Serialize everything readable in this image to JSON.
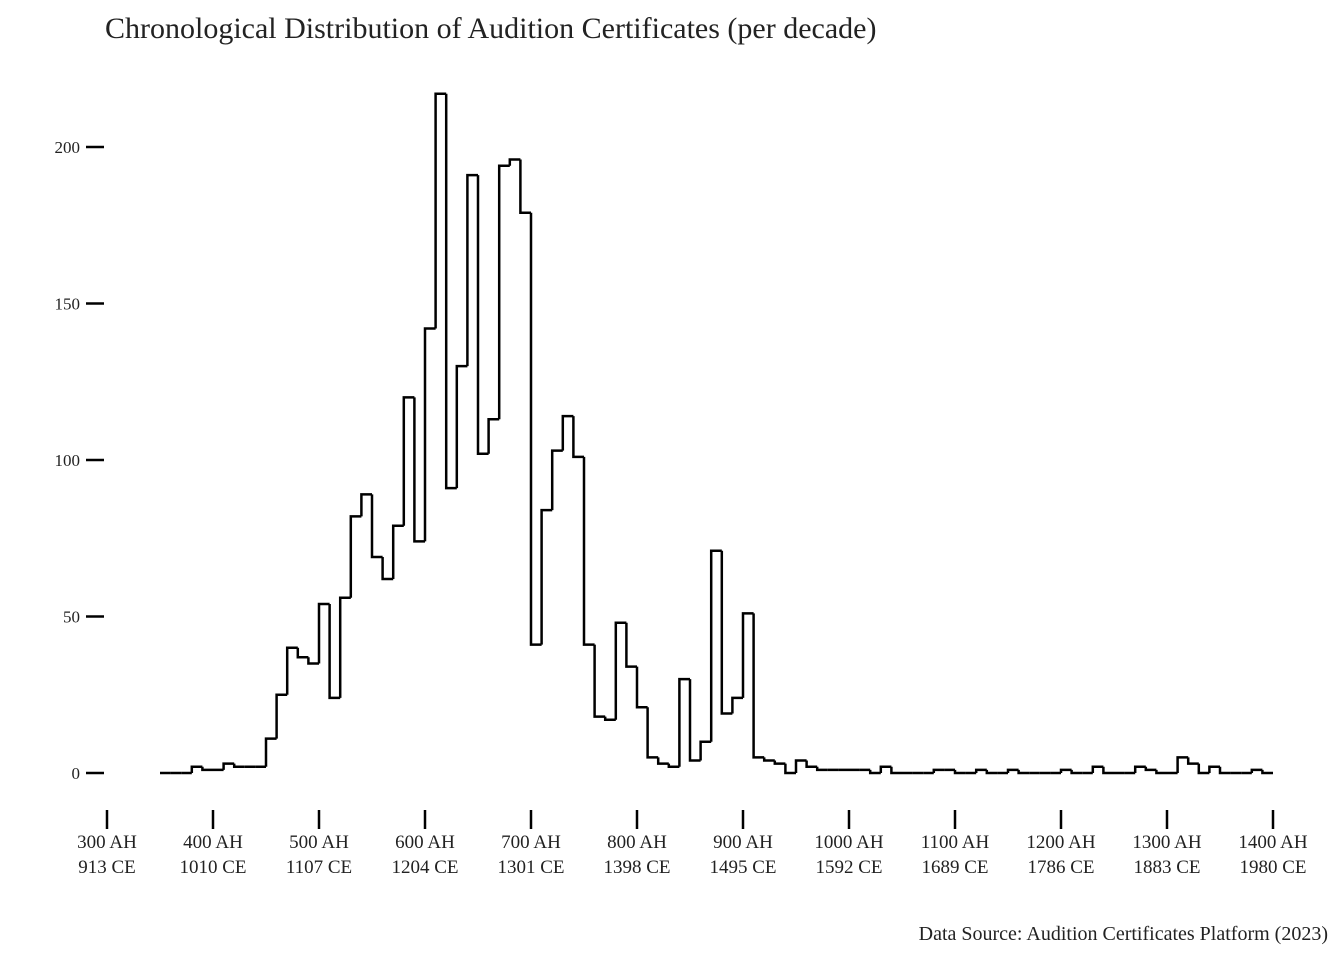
{
  "chart_data": {
    "type": "step-histogram",
    "title": "Chronological Distribution of Audition Certificates (per decade)",
    "source": "Data Source: Audition Certificates Platform (2023)",
    "color": "#000000",
    "bins": [
      350,
      360,
      370,
      380,
      390,
      400,
      410,
      420,
      430,
      440,
      450,
      460,
      470,
      480,
      490,
      500,
      510,
      520,
      530,
      540,
      550,
      560,
      570,
      580,
      590,
      600,
      610,
      620,
      630,
      640,
      650,
      660,
      670,
      680,
      690,
      700,
      710,
      720,
      730,
      740,
      750,
      760,
      770,
      780,
      790,
      800,
      810,
      820,
      830,
      840,
      850,
      860,
      870,
      880,
      890,
      900,
      910,
      920,
      930,
      940,
      950,
      960,
      970,
      980,
      990,
      1000,
      1010,
      1020,
      1030,
      1040,
      1050,
      1060,
      1070,
      1080,
      1090,
      1100,
      1110,
      1120,
      1130,
      1140,
      1150,
      1160,
      1170,
      1180,
      1190,
      1200,
      1210,
      1220,
      1230,
      1240,
      1250,
      1260,
      1270,
      1280,
      1290,
      1300,
      1310,
      1320,
      1330,
      1340,
      1350,
      1360,
      1370,
      1380,
      1390,
      1400
    ],
    "counts": [
      0,
      0,
      0,
      2,
      1,
      1,
      3,
      2,
      2,
      2,
      11,
      25,
      40,
      37,
      35,
      54,
      24,
      56,
      82,
      89,
      69,
      62,
      79,
      120,
      74,
      142,
      217,
      91,
      130,
      191,
      102,
      113,
      194,
      196,
      179,
      41,
      84,
      103,
      114,
      101,
      41,
      18,
      17,
      48,
      34,
      21,
      5,
      3,
      2,
      30,
      4,
      10,
      71,
      19,
      24,
      51,
      5,
      4,
      3,
      0,
      4,
      2,
      1,
      1,
      1,
      1,
      1,
      0,
      2,
      0,
      0,
      0,
      0,
      1,
      1,
      0,
      0,
      1,
      0,
      0,
      1,
      0,
      0,
      0,
      0,
      1,
      0,
      0,
      2,
      0,
      0,
      0,
      2,
      1,
      0,
      0,
      5,
      3,
      0,
      2,
      0,
      0,
      0,
      1,
      0
    ],
    "xlim": [
      300,
      1400
    ],
    "xticks": [
      {
        "value": 300,
        "label": [
          "300 AH",
          "913 CE"
        ]
      },
      {
        "value": 400,
        "label": [
          "400 AH",
          "1010 CE"
        ]
      },
      {
        "value": 500,
        "label": [
          "500 AH",
          "1107 CE"
        ]
      },
      {
        "value": 600,
        "label": [
          "600 AH",
          "1204 CE"
        ]
      },
      {
        "value": 700,
        "label": [
          "700 AH",
          "1301 CE"
        ]
      },
      {
        "value": 800,
        "label": [
          "800 AH",
          "1398 CE"
        ]
      },
      {
        "value": 900,
        "label": [
          "900 AH",
          "1495 CE"
        ]
      },
      {
        "value": 1000,
        "label": [
          "1000 AH",
          "1592 CE"
        ]
      },
      {
        "value": 1100,
        "label": [
          "1100 AH",
          "1689 CE"
        ]
      },
      {
        "value": 1200,
        "label": [
          "1200 AH",
          "1786 CE"
        ]
      },
      {
        "value": 1300,
        "label": [
          "1300 AH",
          "1883 CE"
        ]
      },
      {
        "value": 1400,
        "label": [
          "1400 AH",
          "1980 CE"
        ]
      }
    ],
    "ylim": [
      -10,
      225
    ],
    "yticks": [
      0,
      50,
      100,
      150,
      200
    ]
  }
}
